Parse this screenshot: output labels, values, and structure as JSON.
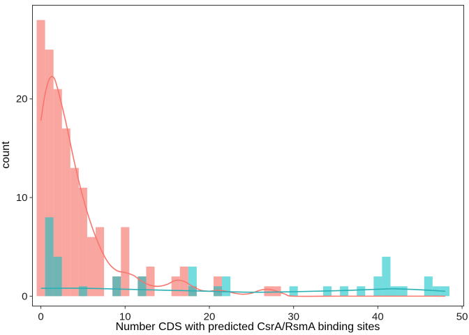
{
  "chart_data": {
    "type": "bar",
    "xlabel": "Number CDS with predicted CsrA/RsmA binding sites",
    "ylabel": "count",
    "xlim": [
      -1.0,
      50.2
    ],
    "ylim": [
      -1.0,
      29.5
    ],
    "bin_width": 1,
    "x_ticks": [
      0,
      10,
      20,
      30,
      40,
      50
    ],
    "y_ticks": [
      0,
      10,
      20
    ],
    "grid": false,
    "legend": "none",
    "colors": {
      "red_fill": "#F8766D",
      "teal_fill": "#00BFC4",
      "red_line": "#F8766D",
      "teal_line": "#2BB0B3",
      "overlap_fill": "#5C8F8E"
    },
    "series": [
      {
        "color": "red",
        "bins": [
          {
            "x": 0,
            "count": 28
          },
          {
            "x": 1,
            "count": 25
          },
          {
            "x": 2,
            "count": 21
          },
          {
            "x": 3,
            "count": 17
          },
          {
            "x": 4,
            "count": 13
          },
          {
            "x": 5,
            "count": 11
          },
          {
            "x": 6,
            "count": 6
          },
          {
            "x": 7,
            "count": 7
          },
          {
            "x": 9,
            "count": 2
          },
          {
            "x": 10,
            "count": 7
          },
          {
            "x": 12,
            "count": 2
          },
          {
            "x": 13,
            "count": 3
          },
          {
            "x": 16,
            "count": 2
          },
          {
            "x": 17,
            "count": 3
          },
          {
            "x": 18,
            "count": 1
          },
          {
            "x": 21,
            "count": 2
          },
          {
            "x": 27,
            "count": 1
          },
          {
            "x": 28,
            "count": 1
          }
        ],
        "density_curve": [
          [
            0,
            17.8
          ],
          [
            0.5,
            20.5
          ],
          [
            1,
            22.0
          ],
          [
            1.5,
            22.2
          ],
          [
            2,
            21.0
          ],
          [
            3,
            17.5
          ],
          [
            4,
            13.5
          ],
          [
            5,
            10.0
          ],
          [
            6,
            7.2
          ],
          [
            7,
            5.0
          ],
          [
            8,
            3.4
          ],
          [
            9,
            2.6
          ],
          [
            10,
            2.4
          ],
          [
            11,
            2.1
          ],
          [
            12,
            1.5
          ],
          [
            13,
            1.1
          ],
          [
            14,
            1.0
          ],
          [
            15,
            1.2
          ],
          [
            16,
            1.6
          ],
          [
            17,
            1.5
          ],
          [
            18,
            1.0
          ],
          [
            19,
            0.6
          ],
          [
            20,
            0.5
          ],
          [
            21,
            0.6
          ],
          [
            22,
            0.5
          ],
          [
            23,
            0.3
          ],
          [
            24,
            0.2
          ],
          [
            25,
            0.3
          ],
          [
            26,
            0.6
          ],
          [
            27,
            0.7
          ],
          [
            28,
            0.5
          ],
          [
            29,
            0.2
          ],
          [
            30,
            0.0
          ],
          [
            35,
            0.0
          ],
          [
            40,
            0.0
          ],
          [
            48,
            0.0
          ]
        ]
      },
      {
        "color": "teal",
        "bins": [
          {
            "x": 1,
            "count": 8
          },
          {
            "x": 2,
            "count": 4
          },
          {
            "x": 5,
            "count": 1
          },
          {
            "x": 9,
            "count": 2
          },
          {
            "x": 12,
            "count": 2
          },
          {
            "x": 18,
            "count": 3
          },
          {
            "x": 21,
            "count": 1
          },
          {
            "x": 22,
            "count": 2
          },
          {
            "x": 30,
            "count": 1
          },
          {
            "x": 34,
            "count": 1
          },
          {
            "x": 36,
            "count": 1
          },
          {
            "x": 38,
            "count": 1
          },
          {
            "x": 40,
            "count": 2
          },
          {
            "x": 41,
            "count": 4
          },
          {
            "x": 42,
            "count": 1
          },
          {
            "x": 43,
            "count": 1
          },
          {
            "x": 46,
            "count": 2
          },
          {
            "x": 47,
            "count": 1
          },
          {
            "x": 48,
            "count": 1
          }
        ],
        "density_curve": [
          [
            0,
            0.8
          ],
          [
            5,
            0.8
          ],
          [
            10,
            0.7
          ],
          [
            15,
            0.6
          ],
          [
            20,
            0.5
          ],
          [
            25,
            0.4
          ],
          [
            30,
            0.45
          ],
          [
            35,
            0.55
          ],
          [
            40,
            0.7
          ],
          [
            42,
            0.75
          ],
          [
            45,
            0.65
          ],
          [
            48,
            0.5
          ]
        ]
      }
    ]
  }
}
